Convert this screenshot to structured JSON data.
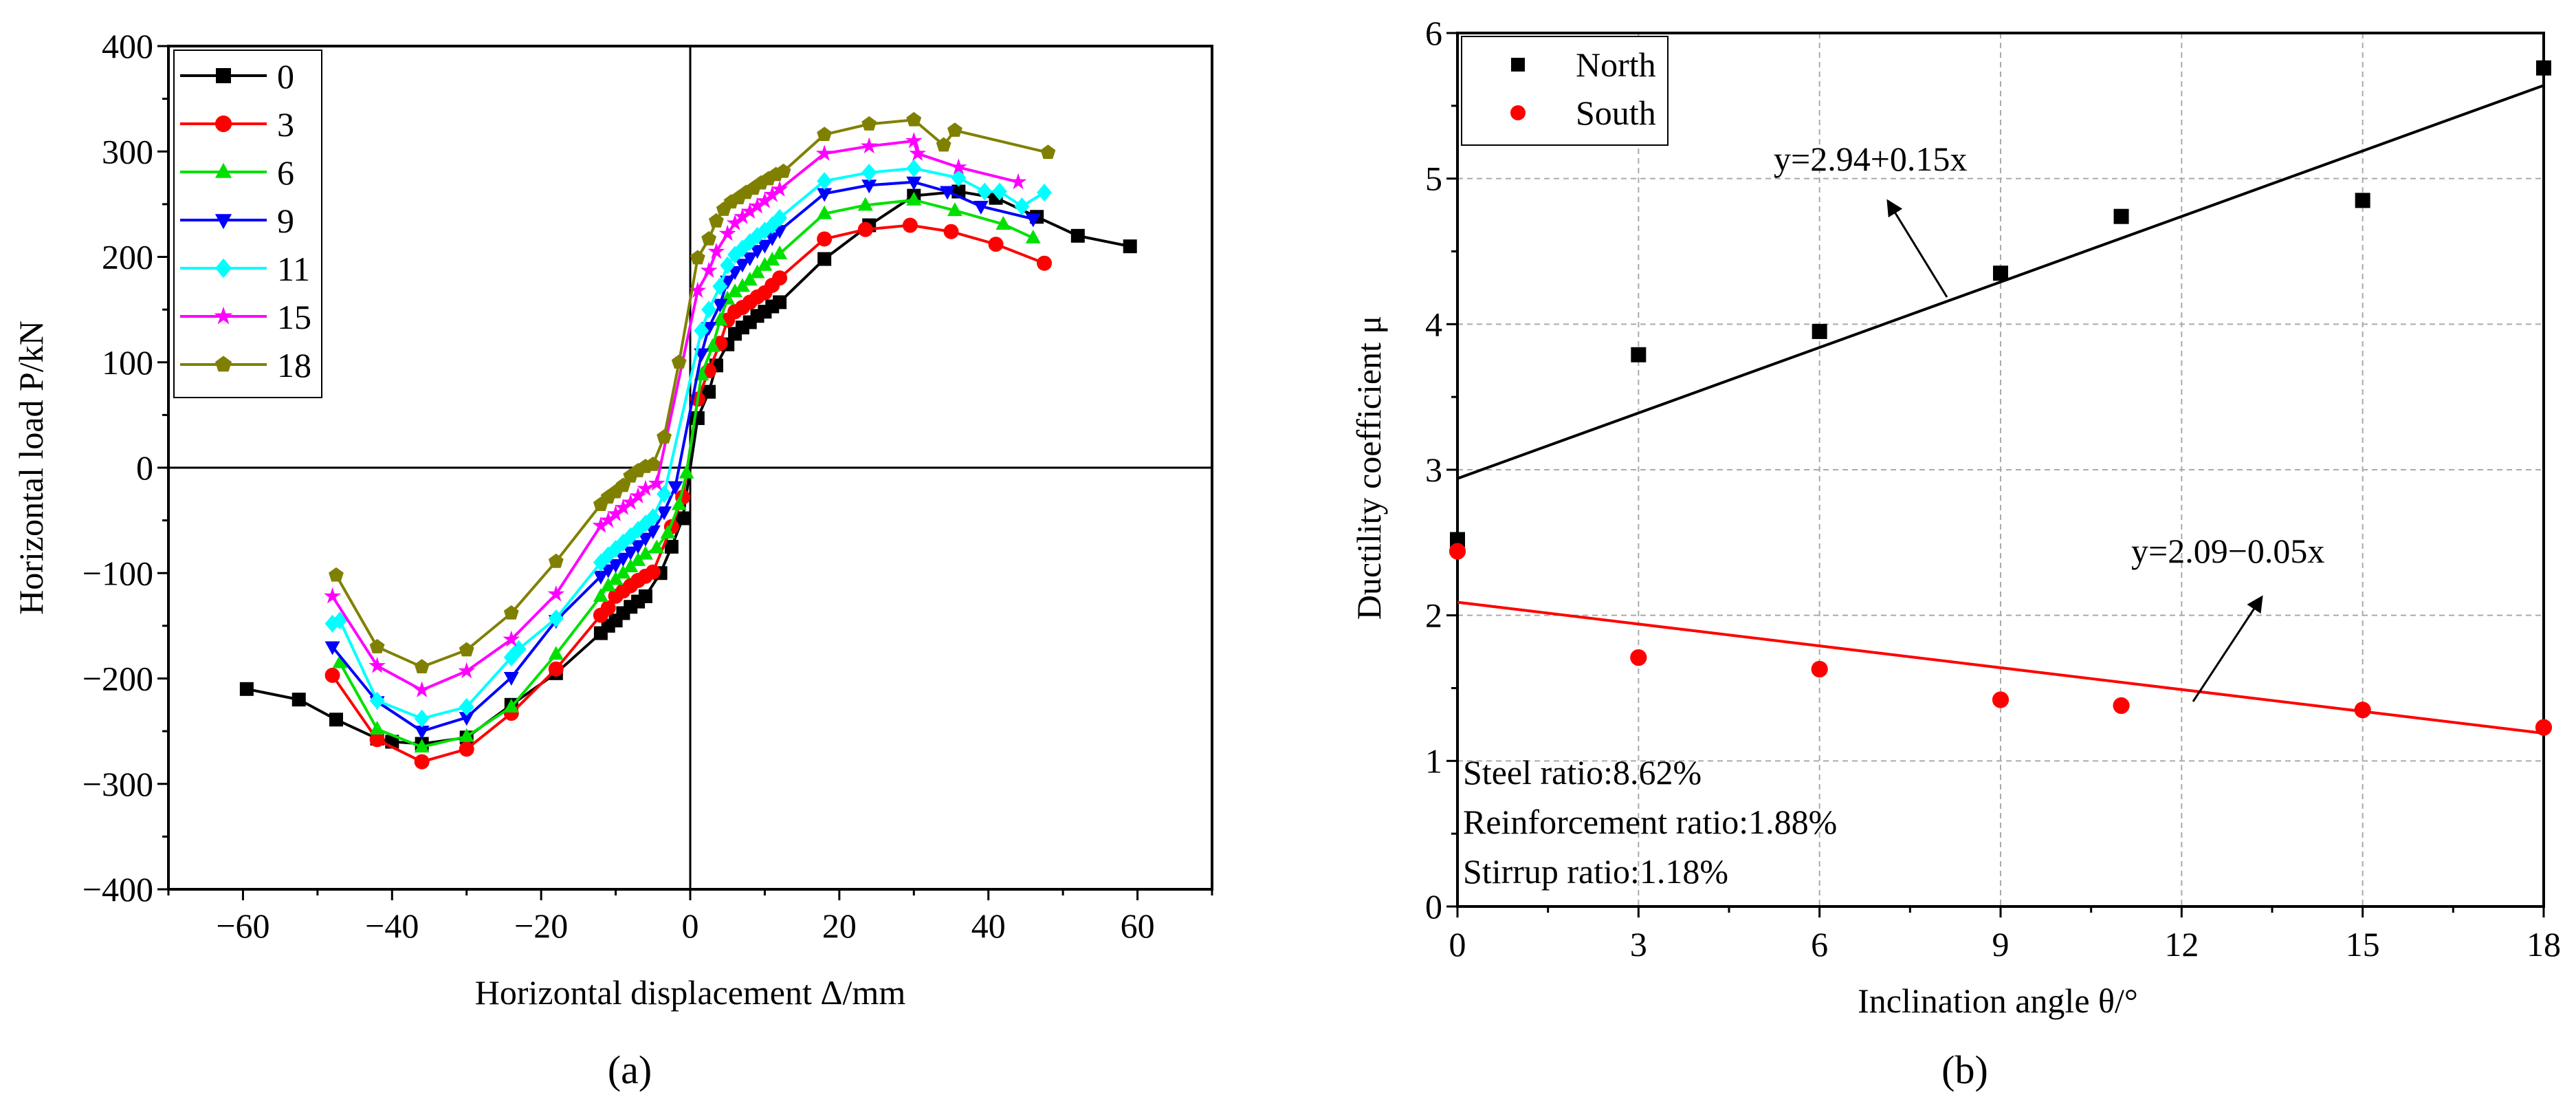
{
  "chart_data": [
    {
      "type": "line",
      "panel_label": "(a)",
      "xlabel": "Horizontal displacement Δ/mm",
      "ylabel": "Horizontal load P/kN",
      "xlim": [
        -70,
        70
      ],
      "ylim": [
        -400,
        400
      ],
      "xticks": [
        -60,
        -40,
        -20,
        0,
        20,
        40,
        60
      ],
      "yticks": [
        -400,
        -300,
        -200,
        -100,
        0,
        100,
        200,
        300,
        400
      ],
      "legend_position": "top-left",
      "series": [
        {
          "name": "0",
          "color": "#000000",
          "marker": "square",
          "points": [
            [
              -59.5,
              -210
            ],
            [
              -52.5,
              -220
            ],
            [
              -47.5,
              -239
            ],
            [
              -42,
              -257
            ],
            [
              -40,
              -260
            ],
            [
              -36,
              -262
            ],
            [
              -30,
              -256
            ],
            [
              -24,
              -225
            ],
            [
              -18,
              -195
            ],
            [
              -12,
              -157
            ],
            [
              -11,
              -150
            ],
            [
              -10,
              -145
            ],
            [
              -9,
              -138
            ],
            [
              -8,
              -132
            ],
            [
              -7,
              -127
            ],
            [
              -6,
              -122
            ],
            [
              -4,
              -100
            ],
            [
              -2.5,
              -75
            ],
            [
              -1,
              -48
            ],
            [
              1,
              47
            ],
            [
              2.5,
              72
            ],
            [
              3.5,
              97
            ],
            [
              5,
              117
            ],
            [
              6,
              127
            ],
            [
              7,
              133
            ],
            [
              8,
              138
            ],
            [
              9,
              144
            ],
            [
              10,
              148
            ],
            [
              11,
              153
            ],
            [
              12,
              157
            ],
            [
              18,
              198
            ],
            [
              24,
              230
            ],
            [
              30,
              258
            ],
            [
              36,
              262
            ],
            [
              41,
              256
            ],
            [
              46.5,
              238
            ],
            [
              52,
              220
            ],
            [
              59,
              210
            ]
          ]
        },
        {
          "name": "3",
          "color": "#ff0000",
          "marker": "circle",
          "points": [
            [
              -48,
              -197
            ],
            [
              -42,
              -258
            ],
            [
              -36,
              -279
            ],
            [
              -30,
              -267
            ],
            [
              -24,
              -233
            ],
            [
              -18,
              -191
            ],
            [
              -12,
              -140
            ],
            [
              -11,
              -133
            ],
            [
              -10,
              -122
            ],
            [
              -9,
              -117
            ],
            [
              -8,
              -112
            ],
            [
              -7,
              -107
            ],
            [
              -6,
              -103
            ],
            [
              -5,
              -99
            ],
            [
              -2.5,
              -56
            ],
            [
              -1,
              -28
            ],
            [
              1,
              65
            ],
            [
              2.5,
              92
            ],
            [
              4,
              118
            ],
            [
              5,
              140
            ],
            [
              6,
              148
            ],
            [
              7,
              152
            ],
            [
              8,
              157
            ],
            [
              9,
              162
            ],
            [
              10,
              166
            ],
            [
              11,
              173
            ],
            [
              12,
              180
            ],
            [
              18,
              217
            ],
            [
              23.5,
              226
            ],
            [
              29.5,
              230
            ],
            [
              35,
              224
            ],
            [
              41,
              212
            ],
            [
              47.5,
              194
            ]
          ]
        },
        {
          "name": "6",
          "color": "#00e000",
          "marker": "triangle-up",
          "points": [
            [
              -47,
              -185
            ],
            [
              -42,
              -248
            ],
            [
              -36,
              -265
            ],
            [
              -30,
              -255
            ],
            [
              -24,
              -227
            ],
            [
              -18,
              -177
            ],
            [
              -12,
              -122
            ],
            [
              -11,
              -112
            ],
            [
              -10,
              -106
            ],
            [
              -9,
              -100
            ],
            [
              -8,
              -94
            ],
            [
              -7,
              -88
            ],
            [
              -6,
              -82
            ],
            [
              -4.5,
              -76
            ],
            [
              -3,
              -62
            ],
            [
              -1.5,
              -35
            ],
            [
              -0.5,
              -5
            ],
            [
              1.5,
              88
            ],
            [
              3,
              115
            ],
            [
              4,
              140
            ],
            [
              5,
              160
            ],
            [
              6,
              167
            ],
            [
              7,
              172
            ],
            [
              8,
              178
            ],
            [
              9,
              185
            ],
            [
              10,
              192
            ],
            [
              11,
              197
            ],
            [
              12,
              203
            ],
            [
              18,
              241
            ],
            [
              23.5,
              249
            ],
            [
              30,
              254
            ],
            [
              35.5,
              244
            ],
            [
              42,
              231
            ],
            [
              46,
              218
            ]
          ]
        },
        {
          "name": "9",
          "color": "#0000ff",
          "marker": "triangle-down",
          "points": [
            [
              -48,
              -170
            ],
            [
              -42,
              -222
            ],
            [
              -36,
              -250
            ],
            [
              -30,
              -237
            ],
            [
              -24,
              -199
            ],
            [
              -18,
              -145
            ],
            [
              -12,
              -103
            ],
            [
              -11,
              -97
            ],
            [
              -10,
              -92
            ],
            [
              -9,
              -86
            ],
            [
              -8,
              -80
            ],
            [
              -7,
              -74
            ],
            [
              -6,
              -67
            ],
            [
              -5,
              -60
            ],
            [
              -3.5,
              -42
            ],
            [
              -2,
              -18
            ],
            [
              1.5,
              108
            ],
            [
              2.5,
              133
            ],
            [
              4,
              155
            ],
            [
              5,
              177
            ],
            [
              6,
              186
            ],
            [
              7,
              193
            ],
            [
              8,
              199
            ],
            [
              9,
              206
            ],
            [
              10,
              211
            ],
            [
              11,
              218
            ],
            [
              12,
              225
            ],
            [
              18,
              260
            ],
            [
              24,
              268
            ],
            [
              30,
              271
            ],
            [
              34.5,
              262
            ],
            [
              39,
              248
            ],
            [
              46,
              236
            ]
          ]
        },
        {
          "name": "11",
          "color": "#00ffff",
          "marker": "diamond",
          "points": [
            [
              -48,
              -148
            ],
            [
              -47,
              -145
            ],
            [
              -42,
              -221
            ],
            [
              -36,
              -238
            ],
            [
              -30,
              -227
            ],
            [
              -24,
              -180
            ],
            [
              -23,
              -172
            ],
            [
              -18,
              -143
            ],
            [
              -12,
              -90
            ],
            [
              -11,
              -83
            ],
            [
              -10,
              -77
            ],
            [
              -9,
              -71
            ],
            [
              -8,
              -65
            ],
            [
              -7,
              -59
            ],
            [
              -6,
              -53
            ],
            [
              -5,
              -47
            ],
            [
              -3.5,
              -25
            ],
            [
              1.5,
              130
            ],
            [
              2.5,
              150
            ],
            [
              4,
              172
            ],
            [
              5,
              192
            ],
            [
              6,
              202
            ],
            [
              7,
              208
            ],
            [
              8,
              214
            ],
            [
              9,
              220
            ],
            [
              10,
              225
            ],
            [
              11,
              230
            ],
            [
              12,
              237
            ],
            [
              18,
              272
            ],
            [
              24,
              280
            ],
            [
              30,
              284
            ],
            [
              36,
              275
            ],
            [
              39.5,
              262
            ],
            [
              41.5,
              262
            ],
            [
              44.5,
              248
            ],
            [
              47.5,
              261
            ]
          ]
        },
        {
          "name": "15",
          "color": "#ff00ff",
          "marker": "star",
          "points": [
            [
              -48,
              -122
            ],
            [
              -42,
              -188
            ],
            [
              -36,
              -211
            ],
            [
              -30,
              -193
            ],
            [
              -24,
              -163
            ],
            [
              -18,
              -120
            ],
            [
              -12,
              -55
            ],
            [
              -11,
              -50
            ],
            [
              -10,
              -44
            ],
            [
              -9,
              -38
            ],
            [
              -8,
              -33
            ],
            [
              -7,
              -27
            ],
            [
              -6,
              -20
            ],
            [
              -4.5,
              -15
            ],
            [
              1,
              168
            ],
            [
              2.5,
              187
            ],
            [
              3.5,
              205
            ],
            [
              5,
              222
            ],
            [
              6,
              232
            ],
            [
              7,
              238
            ],
            [
              8,
              243
            ],
            [
              9,
              248
            ],
            [
              10,
              253
            ],
            [
              11,
              259
            ],
            [
              12,
              264
            ],
            [
              18,
              298
            ],
            [
              24,
              305
            ],
            [
              30,
              310
            ],
            [
              30.5,
              298
            ],
            [
              36,
              285
            ],
            [
              44,
              271
            ]
          ]
        },
        {
          "name": "18",
          "color": "#808000",
          "marker": "pentagon",
          "points": [
            [
              -47.5,
              -102
            ],
            [
              -42,
              -170
            ],
            [
              -36,
              -189
            ],
            [
              -30,
              -173
            ],
            [
              -24,
              -138
            ],
            [
              -18,
              -89
            ],
            [
              -12,
              -35
            ],
            [
              -11,
              -28
            ],
            [
              -10,
              -23
            ],
            [
              -9,
              -17
            ],
            [
              -8,
              -8
            ],
            [
              -7,
              -3
            ],
            [
              -6,
              1
            ],
            [
              -5,
              3
            ],
            [
              -3.5,
              29
            ],
            [
              -1.5,
              100
            ],
            [
              1,
              199
            ],
            [
              2.5,
              217
            ],
            [
              3.5,
              234
            ],
            [
              4.5,
              245
            ],
            [
              5.5,
              252
            ],
            [
              6.5,
              256
            ],
            [
              7.5,
              261
            ],
            [
              8.5,
              265
            ],
            [
              9.5,
              270
            ],
            [
              10.5,
              274
            ],
            [
              11.5,
              278
            ],
            [
              12.5,
              281
            ],
            [
              18,
              316
            ],
            [
              24,
              326
            ],
            [
              30,
              330
            ],
            [
              34,
              306
            ],
            [
              35.5,
              320
            ],
            [
              48,
              299
            ]
          ]
        }
      ]
    },
    {
      "type": "scatter",
      "panel_label": "(b)",
      "xlabel": "Inclination angle θ/°",
      "ylabel": "Ductility coefficient μ",
      "xlim": [
        0,
        18
      ],
      "ylim": [
        0,
        6
      ],
      "xticks": [
        0,
        3,
        6,
        9,
        12,
        15,
        18
      ],
      "yticks": [
        0,
        1,
        2,
        3,
        4,
        5,
        6
      ],
      "grid": true,
      "legend_position": "top-left",
      "series": [
        {
          "name": "North",
          "color": "#000000",
          "marker": "square",
          "x": [
            0,
            3,
            6,
            9,
            11,
            15,
            18
          ],
          "y": [
            2.52,
            3.79,
            3.95,
            4.35,
            4.74,
            4.85,
            5.76
          ],
          "fit": {
            "intercept": 2.94,
            "slope": 0.15,
            "label": "y=2.94+0.15x"
          }
        },
        {
          "name": "South",
          "color": "#ff0000",
          "marker": "circle",
          "x": [
            0,
            3,
            6,
            9,
            11,
            15,
            18
          ],
          "y": [
            2.44,
            1.71,
            1.63,
            1.42,
            1.38,
            1.35,
            1.23
          ],
          "fit": {
            "intercept": 2.09,
            "slope": -0.05,
            "label": "y=2.09−0.05x"
          }
        }
      ],
      "annotations": [
        "Steel ratio:8.62%",
        "Reinforcement ratio:1.88%",
        "Stirrup ratio:1.18%"
      ]
    }
  ]
}
